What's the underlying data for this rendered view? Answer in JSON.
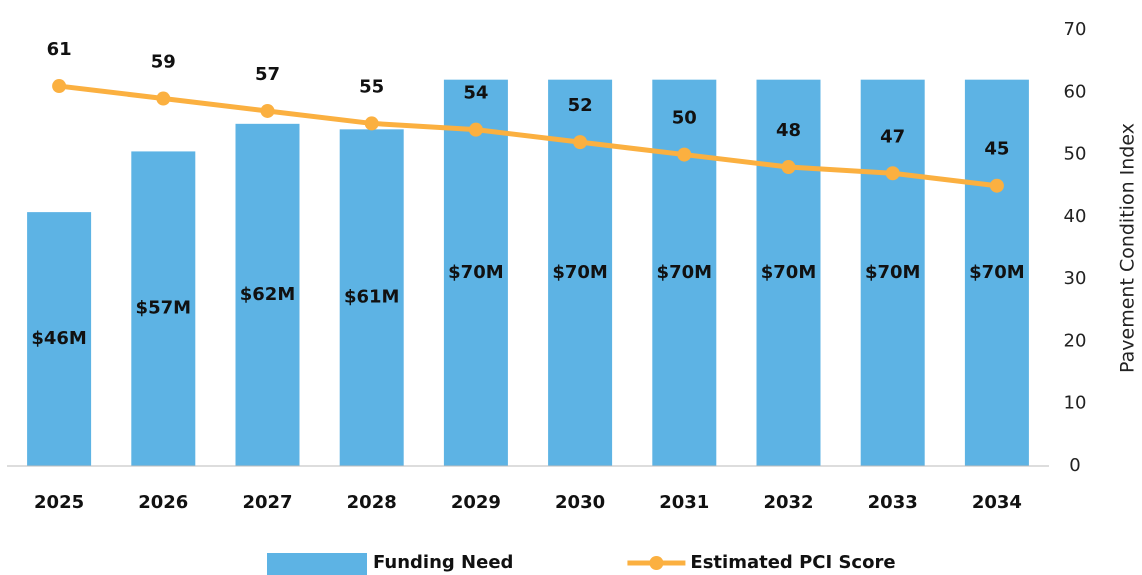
{
  "chart_data": {
    "type": "bar",
    "categories": [
      "2025",
      "2026",
      "2027",
      "2028",
      "2029",
      "2030",
      "2031",
      "2032",
      "2033",
      "2034"
    ],
    "series": [
      {
        "name": "Funding Need",
        "type": "bar",
        "color": "#5db3e4",
        "values": [
          46,
          57,
          62,
          61,
          70,
          70,
          70,
          70,
          70,
          70
        ],
        "value_labels": [
          "$46M",
          "$57M",
          "$62M",
          "$61M",
          "$70M",
          "$70M",
          "$70M",
          "$70M",
          "$70M",
          "$70M"
        ]
      },
      {
        "name": "Estimated PCI Score",
        "type": "line",
        "axis": "y2",
        "color": "#fbb040",
        "values": [
          61,
          59,
          57,
          55,
          54,
          52,
          50,
          48,
          47,
          45
        ]
      }
    ],
    "ylim": [
      0,
      79
    ],
    "y2lim": [
      0,
      70
    ],
    "y2ticks": [
      0,
      10,
      20,
      30,
      40,
      50,
      60,
      70
    ],
    "y2label": "Pavement Condition Index",
    "legend": "bottom"
  }
}
